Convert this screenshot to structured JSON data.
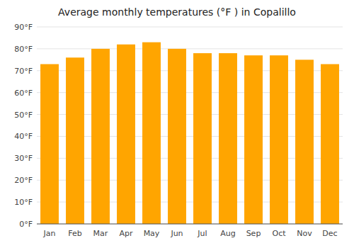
{
  "chart_data": {
    "type": "bar",
    "title": "Average monthly temperatures (°F ) in Copalillo",
    "categories": [
      "Jan",
      "Feb",
      "Mar",
      "Apr",
      "May",
      "Jun",
      "Jul",
      "Aug",
      "Sep",
      "Oct",
      "Nov",
      "Dec"
    ],
    "values": [
      73,
      76,
      80,
      82,
      83,
      80,
      78,
      78,
      77,
      77,
      75,
      73
    ],
    "color": "#FFA500",
    "ylim": [
      0,
      90
    ],
    "yticks": [
      {
        "value": 0,
        "label": "0°F"
      },
      {
        "value": 10,
        "label": "10°F"
      },
      {
        "value": 20,
        "label": "20°F"
      },
      {
        "value": 30,
        "label": "30°F"
      },
      {
        "value": 40,
        "label": "40°F"
      },
      {
        "value": 50,
        "label": "50°F"
      },
      {
        "value": 60,
        "label": "60°F"
      },
      {
        "value": 70,
        "label": "70°F"
      },
      {
        "value": 80,
        "label": "80°F"
      },
      {
        "value": 90,
        "label": "90°F"
      }
    ],
    "grid": true
  }
}
